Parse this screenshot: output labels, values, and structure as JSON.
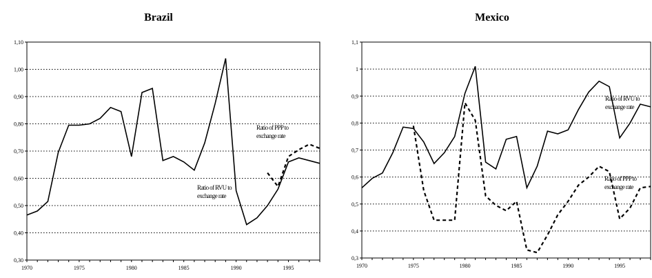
{
  "chart_data": [
    {
      "type": "line",
      "title": "Brazil",
      "xlabel": "",
      "ylabel": "",
      "xlim": [
        1970,
        1998
      ],
      "ylim": [
        0.3,
        1.1
      ],
      "x_ticks": [
        1970,
        1975,
        1980,
        1985,
        1990,
        1995
      ],
      "x_tick_labels": [
        "1970",
        "1975",
        "1980",
        "1985",
        "1990",
        "1995"
      ],
      "y_ticks": [
        0.3,
        0.4,
        0.5,
        0.6,
        0.7,
        0.8,
        0.9,
        1.0,
        1.1
      ],
      "y_tick_labels": [
        "0,30",
        "0,40",
        "0,50",
        "0,60",
        "0,70",
        "0,80",
        "0,90",
        "1,00",
        "1,10"
      ],
      "grid": "horizontal dotted",
      "series": [
        {
          "name": "Ratio of RVU to exchange rate",
          "style": "solid",
          "color": "#000000",
          "x": [
            1970,
            1971,
            1972,
            1973,
            1974,
            1975,
            1976,
            1977,
            1978,
            1979,
            1980,
            1981,
            1982,
            1983,
            1984,
            1985,
            1986,
            1987,
            1988,
            1989,
            1990,
            1991,
            1992,
            1993,
            1994,
            1995,
            1996,
            1997,
            1998
          ],
          "values": [
            0.465,
            0.48,
            0.515,
            0.695,
            0.795,
            0.795,
            0.8,
            0.82,
            0.86,
            0.845,
            0.68,
            0.915,
            0.93,
            0.665,
            0.68,
            0.66,
            0.63,
            0.73,
            0.875,
            1.04,
            0.555,
            0.43,
            0.455,
            0.5,
            0.56,
            0.66,
            0.675,
            0.665,
            0.655
          ]
        },
        {
          "name": "Ratio of PPP to exchange rate",
          "style": "dashed",
          "color": "#000000",
          "x": [
            1993,
            1994,
            1995,
            1996,
            1997,
            1998
          ],
          "values": [
            0.62,
            0.57,
            0.68,
            0.705,
            0.725,
            0.71
          ]
        }
      ],
      "annotations": [
        {
          "lines": [
            "Ratio of PPP to",
            "exchange rate"
          ],
          "series": "Ratio of PPP to exchange rate"
        },
        {
          "lines": [
            "Ratio of RVU to",
            "exchange rate"
          ],
          "series": "Ratio of RVU to exchange rate"
        }
      ]
    },
    {
      "type": "line",
      "title": "Mexico",
      "xlabel": "",
      "ylabel": "",
      "xlim": [
        1970,
        1998
      ],
      "ylim": [
        0.3,
        1.1
      ],
      "x_ticks": [
        1970,
        1975,
        1980,
        1985,
        1990,
        1995
      ],
      "x_tick_labels": [
        "1970",
        "1975",
        "1980",
        "1985",
        "1990",
        "1995"
      ],
      "y_ticks": [
        0.3,
        0.4,
        0.5,
        0.6,
        0.7,
        0.8,
        0.9,
        1.0,
        1.1
      ],
      "y_tick_labels": [
        "0,3",
        "0,4",
        "0,5",
        "0,6",
        "0,7",
        "0,8",
        "0,9",
        "1",
        "1,1"
      ],
      "grid": "horizontal dotted",
      "series": [
        {
          "name": "Ratio of RVU to exchange rate",
          "style": "solid",
          "color": "#000000",
          "x": [
            1970,
            1971,
            1972,
            1973,
            1974,
            1975,
            1976,
            1977,
            1978,
            1979,
            1980,
            1981,
            1982,
            1983,
            1984,
            1985,
            1986,
            1987,
            1988,
            1989,
            1990,
            1991,
            1992,
            1993,
            1994,
            1995,
            1996,
            1997,
            1998
          ],
          "values": [
            0.56,
            0.595,
            0.615,
            0.69,
            0.785,
            0.78,
            0.73,
            0.65,
            0.69,
            0.75,
            0.91,
            1.01,
            0.655,
            0.63,
            0.74,
            0.75,
            0.56,
            0.64,
            0.77,
            0.76,
            0.775,
            0.85,
            0.915,
            0.955,
            0.935,
            0.745,
            0.8,
            0.87,
            0.86
          ]
        },
        {
          "name": "Ratio of PPP to exchange rate",
          "style": "dashed",
          "color": "#000000",
          "x": [
            1975,
            1976,
            1977,
            1978,
            1979,
            1980,
            1981,
            1982,
            1983,
            1984,
            1985,
            1986,
            1987,
            1988,
            1989,
            1990,
            1991,
            1992,
            1993,
            1994,
            1995,
            1996,
            1997,
            1998
          ],
          "values": [
            0.79,
            0.55,
            0.44,
            0.44,
            0.44,
            0.875,
            0.81,
            0.53,
            0.495,
            0.475,
            0.51,
            0.33,
            0.32,
            0.385,
            0.46,
            0.51,
            0.57,
            0.6,
            0.64,
            0.62,
            0.445,
            0.485,
            0.56,
            0.565
          ]
        }
      ],
      "annotations": [
        {
          "lines": [
            "Ratio of RVU to",
            "exchange rate"
          ],
          "series": "Ratio of RVU to exchange rate"
        },
        {
          "lines": [
            "Ratio of PPP to",
            "exchange rate"
          ],
          "series": "Ratio of PPP to exchange rate"
        }
      ]
    }
  ]
}
